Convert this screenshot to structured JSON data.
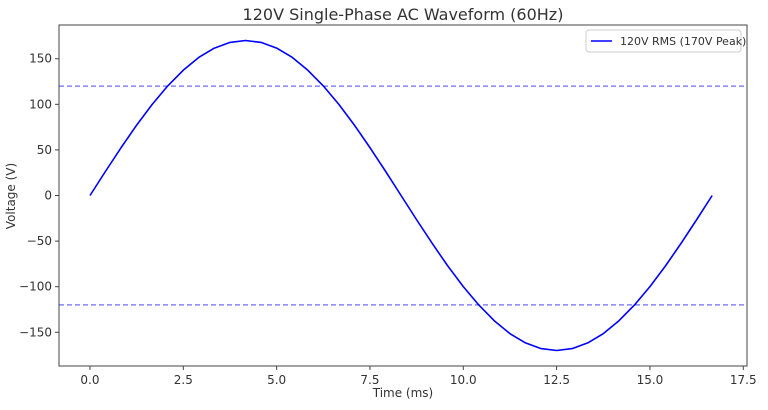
{
  "chart_data": {
    "type": "line",
    "title": "120V Single-Phase AC Waveform (60Hz)",
    "xlabel": "Time (ms)",
    "ylabel": "Voltage (V)",
    "xlim": [
      -0.83,
      17.6
    ],
    "ylim": [
      -187,
      187
    ],
    "grid": false,
    "legend_position": "top-right",
    "xticks": [
      "0.0",
      "2.5",
      "5.0",
      "7.5",
      "10.0",
      "12.5",
      "15.0",
      "17.5"
    ],
    "xtick_values": [
      0,
      2.5,
      5,
      7.5,
      10,
      12.5,
      15,
      17.5
    ],
    "yticks": [
      "−150",
      "−100",
      "−50",
      "0",
      "50",
      "100",
      "150"
    ],
    "ytick_values": [
      -150,
      -100,
      -50,
      0,
      50,
      100,
      150
    ],
    "series": [
      {
        "name": "120V RMS (170V Peak)",
        "color": "#0000ff",
        "x": [
          0,
          0.417,
          0.833,
          1.25,
          1.667,
          2.083,
          2.5,
          2.917,
          3.333,
          3.75,
          4.167,
          4.583,
          5.0,
          5.417,
          5.833,
          6.25,
          6.667,
          7.083,
          7.5,
          7.917,
          8.333,
          8.75,
          9.167,
          9.583,
          10.0,
          10.417,
          10.833,
          11.25,
          11.667,
          12.083,
          12.5,
          12.917,
          13.333,
          13.75,
          14.167,
          14.583,
          15.0,
          15.417,
          15.833,
          16.25,
          16.667
        ],
        "y": [
          0,
          26.6,
          52.5,
          77.2,
          99.9,
          120.2,
          137.5,
          151.5,
          161.7,
          167.9,
          170,
          167.9,
          161.7,
          151.5,
          137.5,
          120.2,
          99.9,
          77.2,
          52.5,
          26.6,
          0,
          -26.6,
          -52.5,
          -77.2,
          -99.9,
          -120.2,
          -137.5,
          -151.5,
          -161.7,
          -167.9,
          -170,
          -167.9,
          -161.7,
          -151.5,
          -137.5,
          -120.2,
          -99.9,
          -77.2,
          -52.5,
          -26.6,
          0
        ]
      }
    ],
    "reference_lines": [
      {
        "y": 120,
        "color": "#6b6bff",
        "style": "dashed"
      },
      {
        "y": -120,
        "color": "#6b6bff",
        "style": "dashed"
      }
    ]
  }
}
